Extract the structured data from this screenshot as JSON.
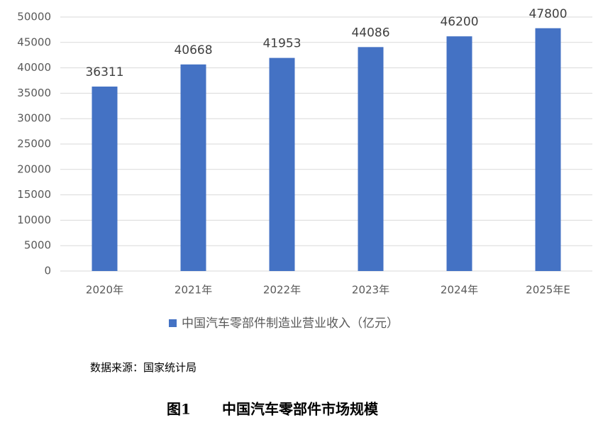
{
  "chart_data": {
    "type": "bar",
    "categories": [
      "2020年",
      "2021年",
      "2022年",
      "2023年",
      "2024年",
      "2025年E"
    ],
    "series": [
      {
        "name": "中国汽车零部件制造业营业收入（亿元）",
        "color": "#4472c4",
        "values": [
          36311,
          40668,
          41953,
          44086,
          46200,
          47800
        ]
      }
    ],
    "ylim": [
      0,
      50000
    ],
    "yticks": [
      0,
      5000,
      10000,
      15000,
      20000,
      25000,
      30000,
      35000,
      40000,
      45000,
      50000
    ],
    "grid": true,
    "legend": "bottom",
    "data_labels": true
  },
  "source": "数据来源：国家统计局",
  "figure_number": "图1",
  "caption": "中国汽车零部件市场规模"
}
